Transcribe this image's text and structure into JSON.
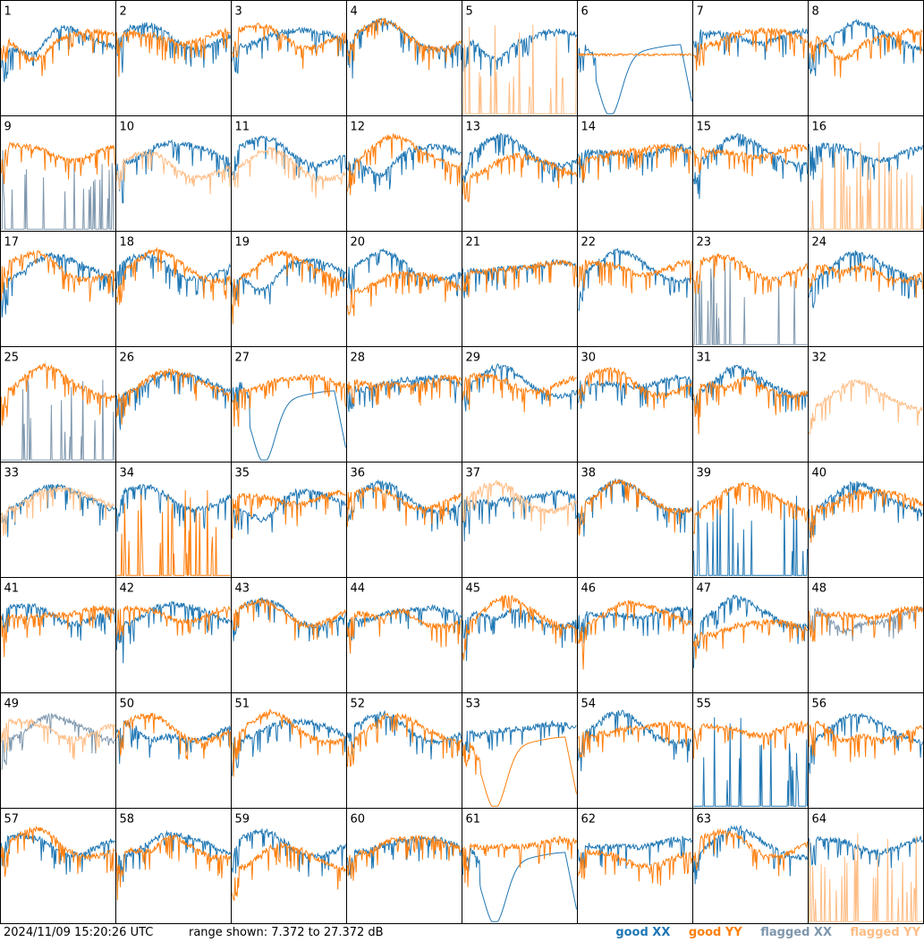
{
  "footer": {
    "timestamp": "2024/11/09 15:20:26 UTC",
    "range": "range shown: 7.372 to 27.372 dB"
  },
  "legend": {
    "good_xx": "good XX",
    "good_yy": "good YY",
    "flagged_xx": "flagged XX",
    "flagged_yy": "flagged YY"
  },
  "colors": {
    "good_xx": "#1f77b4",
    "good_yy": "#ff7f0e",
    "flagged_xx": "#7e97ad",
    "flagged_yy": "#ffbd85",
    "border": "#000000"
  },
  "chart_data": {
    "type": "line",
    "grid_layout": "8x8 small multiples",
    "ylim": [
      7.372,
      27.372
    ],
    "yunit": "dB",
    "panels": [
      {
        "id": "1",
        "xx": "good",
        "yy": "good",
        "xx_shape": "dip",
        "yy_shape": "dip"
      },
      {
        "id": "2",
        "xx": "good",
        "yy": "good",
        "xx_shape": "normal",
        "yy_shape": "normal"
      },
      {
        "id": "3",
        "xx": "good",
        "yy": "good",
        "xx_shape": "normal",
        "yy_shape": "normal"
      },
      {
        "id": "4",
        "xx": "good",
        "yy": "good",
        "xx_shape": "normal",
        "yy_shape": "normal"
      },
      {
        "id": "5",
        "xx": "good",
        "yy": "flagged",
        "xx_shape": "dip",
        "yy_shape": "spikes"
      },
      {
        "id": "6",
        "xx": "good",
        "yy": "good",
        "xx_shape": "deepdip",
        "yy_shape": "flat"
      },
      {
        "id": "7",
        "xx": "good",
        "yy": "good",
        "xx_shape": "normal",
        "yy_shape": "normal"
      },
      {
        "id": "8",
        "xx": "good",
        "yy": "good",
        "xx_shape": "normal",
        "yy_shape": "dip"
      },
      {
        "id": "9",
        "xx": "flagged",
        "yy": "good",
        "xx_shape": "spikes",
        "yy_shape": "normal"
      },
      {
        "id": "10",
        "xx": "good",
        "yy": "flagged",
        "xx_shape": "normal",
        "yy_shape": "low"
      },
      {
        "id": "11",
        "xx": "good",
        "yy": "flagged",
        "xx_shape": "normal",
        "yy_shape": "low"
      },
      {
        "id": "12",
        "xx": "good",
        "yy": "good",
        "xx_shape": "dip",
        "yy_shape": "normal"
      },
      {
        "id": "13",
        "xx": "good",
        "yy": "good",
        "xx_shape": "normal",
        "yy_shape": "low"
      },
      {
        "id": "14",
        "xx": "good",
        "yy": "good",
        "xx_shape": "normal",
        "yy_shape": "normal"
      },
      {
        "id": "15",
        "xx": "good",
        "yy": "good",
        "xx_shape": "normal",
        "yy_shape": "normal"
      },
      {
        "id": "16",
        "xx": "good",
        "yy": "flagged",
        "xx_shape": "normal",
        "yy_shape": "spikes"
      },
      {
        "id": "17",
        "xx": "good",
        "yy": "good",
        "xx_shape": "normal",
        "yy_shape": "normal"
      },
      {
        "id": "18",
        "xx": "good",
        "yy": "good",
        "xx_shape": "normal",
        "yy_shape": "normal"
      },
      {
        "id": "19",
        "xx": "good",
        "yy": "good",
        "xx_shape": "dip",
        "yy_shape": "normal"
      },
      {
        "id": "20",
        "xx": "good",
        "yy": "good",
        "xx_shape": "normal",
        "yy_shape": "low"
      },
      {
        "id": "21",
        "xx": "good",
        "yy": "good",
        "xx_shape": "normal",
        "yy_shape": "normal"
      },
      {
        "id": "22",
        "xx": "good",
        "yy": "good",
        "xx_shape": "normal",
        "yy_shape": "normal"
      },
      {
        "id": "23",
        "xx": "flagged",
        "yy": "good",
        "xx_shape": "spikes",
        "yy_shape": "normal"
      },
      {
        "id": "24",
        "xx": "good",
        "yy": "good",
        "xx_shape": "normal",
        "yy_shape": "dip"
      },
      {
        "id": "25",
        "xx": "flagged",
        "yy": "good",
        "xx_shape": "spikes",
        "yy_shape": "normal"
      },
      {
        "id": "26",
        "xx": "good",
        "yy": "good",
        "xx_shape": "normal",
        "yy_shape": "normal"
      },
      {
        "id": "27",
        "xx": "good",
        "yy": "good",
        "xx_shape": "deepdip",
        "yy_shape": "normal"
      },
      {
        "id": "28",
        "xx": "good",
        "yy": "good",
        "xx_shape": "normal",
        "yy_shape": "normal"
      },
      {
        "id": "29",
        "xx": "good",
        "yy": "good",
        "xx_shape": "normal",
        "yy_shape": "normal"
      },
      {
        "id": "30",
        "xx": "good",
        "yy": "good",
        "xx_shape": "normal",
        "yy_shape": "normal"
      },
      {
        "id": "31",
        "xx": "good",
        "yy": "good",
        "xx_shape": "normal",
        "yy_shape": "dip"
      },
      {
        "id": "32",
        "xx": "none",
        "yy": "flagged",
        "xx_shape": "normal",
        "yy_shape": "low"
      },
      {
        "id": "33",
        "xx": "good",
        "yy": "flagged",
        "xx_shape": "normal",
        "yy_shape": "normal"
      },
      {
        "id": "34",
        "xx": "good",
        "yy": "good",
        "xx_shape": "normal",
        "yy_shape": "spikes"
      },
      {
        "id": "35",
        "xx": "good",
        "yy": "good",
        "xx_shape": "dip",
        "yy_shape": "normal"
      },
      {
        "id": "36",
        "xx": "good",
        "yy": "good",
        "xx_shape": "normal",
        "yy_shape": "normal"
      },
      {
        "id": "37",
        "xx": "good",
        "yy": "flagged",
        "xx_shape": "normal",
        "yy_shape": "normal"
      },
      {
        "id": "38",
        "xx": "good",
        "yy": "good",
        "xx_shape": "normal",
        "yy_shape": "normal"
      },
      {
        "id": "39",
        "xx": "good",
        "yy": "good",
        "xx_shape": "spikes",
        "yy_shape": "normal"
      },
      {
        "id": "40",
        "xx": "good",
        "yy": "good",
        "xx_shape": "normal",
        "yy_shape": "normal"
      },
      {
        "id": "41",
        "xx": "good",
        "yy": "good",
        "xx_shape": "normal",
        "yy_shape": "normal"
      },
      {
        "id": "42",
        "xx": "good",
        "yy": "good",
        "xx_shape": "normal",
        "yy_shape": "normal"
      },
      {
        "id": "43",
        "xx": "good",
        "yy": "good",
        "xx_shape": "normal",
        "yy_shape": "normal"
      },
      {
        "id": "44",
        "xx": "good",
        "yy": "good",
        "xx_shape": "normal",
        "yy_shape": "dip"
      },
      {
        "id": "45",
        "xx": "good",
        "yy": "good",
        "xx_shape": "dip",
        "yy_shape": "normal"
      },
      {
        "id": "46",
        "xx": "good",
        "yy": "good",
        "xx_shape": "normal",
        "yy_shape": "normal"
      },
      {
        "id": "47",
        "xx": "good",
        "yy": "good",
        "xx_shape": "normal",
        "yy_shape": "low"
      },
      {
        "id": "48",
        "xx": "flagged",
        "yy": "good",
        "xx_shape": "dip",
        "yy_shape": "normal"
      },
      {
        "id": "49",
        "xx": "flagged",
        "yy": "flagged",
        "xx_shape": "normal",
        "yy_shape": "normal"
      },
      {
        "id": "50",
        "xx": "good",
        "yy": "good",
        "xx_shape": "dip",
        "yy_shape": "normal"
      },
      {
        "id": "51",
        "xx": "good",
        "yy": "good",
        "xx_shape": "normal",
        "yy_shape": "normal"
      },
      {
        "id": "52",
        "xx": "good",
        "yy": "good",
        "xx_shape": "normal",
        "yy_shape": "normal"
      },
      {
        "id": "53",
        "xx": "good",
        "yy": "good",
        "xx_shape": "normal",
        "yy_shape": "deepdip"
      },
      {
        "id": "54",
        "xx": "good",
        "yy": "good",
        "xx_shape": "normal",
        "yy_shape": "normal"
      },
      {
        "id": "55",
        "xx": "good",
        "yy": "good",
        "xx_shape": "spikes",
        "yy_shape": "normal"
      },
      {
        "id": "56",
        "xx": "good",
        "yy": "good",
        "xx_shape": "normal",
        "yy_shape": "dip"
      },
      {
        "id": "57",
        "xx": "good",
        "yy": "good",
        "xx_shape": "normal",
        "yy_shape": "normal"
      },
      {
        "id": "58",
        "xx": "good",
        "yy": "good",
        "xx_shape": "normal",
        "yy_shape": "dip"
      },
      {
        "id": "59",
        "xx": "good",
        "yy": "good",
        "xx_shape": "normal",
        "yy_shape": "low"
      },
      {
        "id": "60",
        "xx": "good",
        "yy": "good",
        "xx_shape": "normal",
        "yy_shape": "normal"
      },
      {
        "id": "61",
        "xx": "good",
        "yy": "good",
        "xx_shape": "deepdip",
        "yy_shape": "normal"
      },
      {
        "id": "62",
        "xx": "good",
        "yy": "good",
        "xx_shape": "normal",
        "yy_shape": "low"
      },
      {
        "id": "63",
        "xx": "good",
        "yy": "good",
        "xx_shape": "normal",
        "yy_shape": "normal"
      },
      {
        "id": "64",
        "xx": "good",
        "yy": "flagged",
        "xx_shape": "normal",
        "yy_shape": "spikes"
      }
    ]
  }
}
